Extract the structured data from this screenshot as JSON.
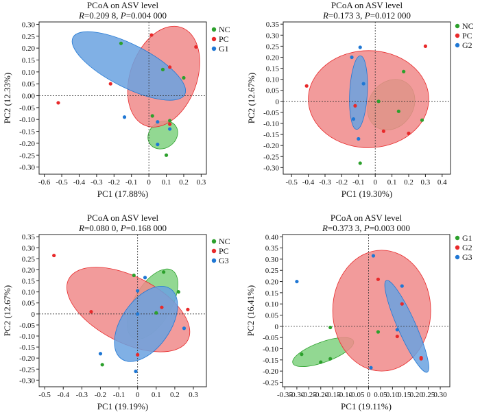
{
  "colors": {
    "NC": "#2ca02c",
    "PC": "#e8292a",
    "G1": "#1f77d4",
    "G2": "#1f77d4",
    "G3": "#1f77d4",
    "G1_green": "#2ca02c",
    "G2_red": "#e8292a",
    "G3_blue": "#1f77d4"
  },
  "chart_data": [
    {
      "type": "scatter",
      "title": "PCoA on ASV level",
      "stats": {
        "r_label": "R",
        "r_value": "=0.209 8, ",
        "p_label": "P",
        "p_value": "=0.004 000"
      },
      "xlabel": "PC1 (17.88%)",
      "ylabel": "PC2 (12.33%)",
      "xlim": [
        -0.63,
        0.33
      ],
      "ylim": [
        -0.33,
        0.31
      ],
      "xticks": [
        "-0.6",
        "-0.5",
        "-0.4",
        "-0.3",
        "-0.2",
        "-0.1",
        "0",
        "0.1",
        "0.2",
        "0.3"
      ],
      "xtick_values": [
        -0.6,
        -0.5,
        -0.4,
        -0.3,
        -0.2,
        -0.1,
        0,
        0.1,
        0.2,
        0.3
      ],
      "yticks": [
        "0.30",
        "0.25",
        "0.20",
        "0.15",
        "0.10",
        "0.05",
        "0.00",
        "-0.05",
        "-0.10",
        "-0.15",
        "-0.20",
        "-0.25",
        "-0.30"
      ],
      "ytick_values": [
        0.3,
        0.25,
        0.2,
        0.15,
        0.1,
        0.05,
        0.0,
        -0.05,
        -0.1,
        -0.15,
        -0.2,
        -0.25,
        -0.3
      ],
      "legend": [
        "NC",
        "PC",
        "G1"
      ],
      "legend_colors": [
        "#2ca02c",
        "#e8292a",
        "#1f77d4"
      ],
      "series": [
        {
          "name": "NC",
          "color": "#2ca02c",
          "points": [
            [
              -0.16,
              0.22
            ],
            [
              0.08,
              0.11
            ],
            [
              0.2,
              0.075
            ],
            [
              0.02,
              -0.085
            ],
            [
              0.12,
              -0.105
            ],
            [
              0.1,
              -0.25
            ]
          ],
          "ellipse": {
            "cx": 0.08,
            "cy": -0.165,
            "rx": 0.09,
            "ry": 0.055,
            "angle": -35,
            "fill": "#7fd17f"
          }
        },
        {
          "name": "PC",
          "color": "#e8292a",
          "points": [
            [
              0.015,
              0.255
            ],
            [
              0.27,
              0.205
            ],
            [
              0.12,
              0.12
            ],
            [
              -0.22,
              0.05
            ],
            [
              -0.52,
              -0.03
            ],
            [
              0.12,
              -0.12
            ]
          ],
          "ellipse": {
            "cx": 0.085,
            "cy": 0.08,
            "rx": 0.3,
            "ry": 0.14,
            "angle": -70,
            "fill": "#f08a8a"
          }
        },
        {
          "name": "G1",
          "color": "#1f77d4",
          "points": [
            [
              -0.14,
              -0.09
            ],
            [
              0.05,
              -0.11
            ],
            [
              0.12,
              -0.14
            ],
            [
              0.05,
              -0.205
            ]
          ],
          "ellipse": {
            "cx": -0.115,
            "cy": 0.125,
            "rx": 0.36,
            "ry": 0.09,
            "angle": 27,
            "fill": "#6aa2e0"
          }
        }
      ]
    },
    {
      "type": "scatter",
      "title": "PCoA on ASV level",
      "stats": {
        "r_label": "R",
        "r_value": "=0.173 3, ",
        "p_label": "P",
        "p_value": "=0.012 000"
      },
      "xlabel": "PC1 (19.30%)",
      "ylabel": "PC2 (12.67%)",
      "xlim": [
        -0.55,
        0.45
      ],
      "ylim": [
        -0.33,
        0.36
      ],
      "xticks": [
        "-0.5",
        "-0.4",
        "-0.3",
        "-0.2",
        "-0.1",
        "0",
        "0.1",
        "0.2",
        "0.3",
        "0.4"
      ],
      "xtick_values": [
        -0.5,
        -0.4,
        -0.3,
        -0.2,
        -0.1,
        0,
        0.1,
        0.2,
        0.3,
        0.4
      ],
      "yticks": [
        "0.35",
        "0.30",
        "0.25",
        "0.20",
        "0.15",
        "0.10",
        "0.05",
        "0",
        "-0.05",
        "-0.10",
        "-0.15",
        "-0.20",
        "-0.25",
        "-0.30"
      ],
      "ytick_values": [
        0.35,
        0.3,
        0.25,
        0.2,
        0.15,
        0.1,
        0.05,
        0,
        -0.05,
        -0.1,
        -0.15,
        -0.2,
        -0.25,
        -0.3
      ],
      "legend": [
        "NC",
        "PC",
        "G2"
      ],
      "legend_colors": [
        "#2ca02c",
        "#e8292a",
        "#1f77d4"
      ],
      "series": [
        {
          "name": "NC",
          "color": "#2ca02c",
          "points": [
            [
              0.17,
              0.135
            ],
            [
              0.02,
              0.0
            ],
            [
              0.14,
              -0.045
            ],
            [
              0.28,
              -0.085
            ],
            [
              -0.09,
              -0.28
            ]
          ],
          "ellipse": {
            "cx": 0.095,
            "cy": -0.015,
            "rx": 0.16,
            "ry": 0.1,
            "angle": -55,
            "fill": "#7fd17f"
          }
        },
        {
          "name": "PC",
          "color": "#e8292a",
          "points": [
            [
              -0.41,
              0.07
            ],
            [
              0.3,
              0.25
            ],
            [
              -0.12,
              -0.02
            ],
            [
              0.05,
              -0.135
            ],
            [
              0.2,
              -0.145
            ]
          ],
          "ellipse": {
            "cx": -0.04,
            "cy": 0.01,
            "rx": 0.36,
            "ry": 0.22,
            "angle": 0,
            "fill": "#f08a8a"
          }
        },
        {
          "name": "G2",
          "color": "#1f77d4",
          "points": [
            [
              -0.09,
              0.245
            ],
            [
              -0.14,
              0.2
            ],
            [
              -0.07,
              0.08
            ],
            [
              -0.13,
              -0.08
            ],
            [
              -0.1,
              -0.17
            ]
          ],
          "ellipse": {
            "cx": -0.1,
            "cy": 0.04,
            "rx": 0.22,
            "ry": 0.04,
            "angle": -87,
            "fill": "#6aa2e0"
          }
        }
      ]
    },
    {
      "type": "scatter",
      "title": "PCoA on ASV level",
      "stats": {
        "r_label": "R",
        "r_value": "=0.080 0, ",
        "p_label": "P",
        "p_value": "=0.168 000"
      },
      "xlabel": "PC1 (19.19%)",
      "ylabel": "PC2 (12.67%)",
      "xlim": [
        -0.53,
        0.37
      ],
      "ylim": [
        -0.33,
        0.36
      ],
      "xticks": [
        "-0.5",
        "-0.4",
        "-0.3",
        "-0.2",
        "-0.1",
        "0",
        "0.1",
        "0.2",
        "0.3"
      ],
      "xtick_values": [
        -0.5,
        -0.4,
        -0.3,
        -0.2,
        -0.1,
        0,
        0.1,
        0.2,
        0.3
      ],
      "yticks": [
        "0.35",
        "0.30",
        "0.25",
        "0.20",
        "0.15",
        "0.10",
        "0.05",
        "0",
        "-0.05",
        "-0.10",
        "-0.15",
        "-0.20",
        "-0.25",
        "-0.30"
      ],
      "ytick_values": [
        0.35,
        0.3,
        0.25,
        0.2,
        0.15,
        0.1,
        0.05,
        0,
        -0.05,
        -0.1,
        -0.15,
        -0.2,
        -0.25,
        -0.3
      ],
      "legend": [
        "NC",
        "PC",
        "G3"
      ],
      "legend_colors": [
        "#2ca02c",
        "#e8292a",
        "#1f77d4"
      ],
      "series": [
        {
          "name": "NC",
          "color": "#2ca02c",
          "points": [
            [
              -0.02,
              0.175
            ],
            [
              0.14,
              0.19
            ],
            [
              0.22,
              0.1
            ],
            [
              0.1,
              0.005
            ],
            [
              -0.19,
              -0.23
            ]
          ],
          "ellipse": {
            "cx": 0.08,
            "cy": 0.045,
            "rx": 0.21,
            "ry": 0.085,
            "angle": -60,
            "fill": "#7fd17f"
          }
        },
        {
          "name": "PC",
          "color": "#e8292a",
          "points": [
            [
              -0.45,
              0.265
            ],
            [
              -0.25,
              0.01
            ],
            [
              0.27,
              0.02
            ],
            [
              0.13,
              0.03
            ],
            [
              0.0,
              -0.185
            ]
          ],
          "ellipse": {
            "cx": -0.05,
            "cy": 0.02,
            "rx": 0.36,
            "ry": 0.15,
            "angle": 27,
            "fill": "#f08a8a"
          }
        },
        {
          "name": "G3",
          "color": "#1f77d4",
          "points": [
            [
              0.04,
              0.165
            ],
            [
              0.0,
              0.105
            ],
            [
              0.0,
              0.0
            ],
            [
              0.25,
              -0.065
            ],
            [
              -0.2,
              -0.18
            ],
            [
              -0.01,
              -0.26
            ]
          ],
          "ellipse": {
            "cx": 0.045,
            "cy": -0.045,
            "rx": 0.23,
            "ry": 0.11,
            "angle": -55,
            "fill": "#6aa2e0"
          }
        }
      ]
    },
    {
      "type": "scatter",
      "title": "PCoA on ASV level",
      "stats": {
        "r_label": "R",
        "r_value": "=0.373 3, ",
        "p_label": "P",
        "p_value": "=0.003 000"
      },
      "xlabel": "PC1 (19.11%)",
      "ylabel": "PC2 (16.41%)",
      "xlim": [
        -0.36,
        0.34
      ],
      "ylim": [
        -0.27,
        0.41
      ],
      "xticks": [
        "-0.35",
        "-0.30",
        "-0.25",
        "-0.20",
        "-0.15",
        "-0.10",
        "-0.05",
        "0",
        "0.05",
        "0.10",
        "0.15",
        "0.20",
        "0.25",
        "0.30"
      ],
      "xtick_values": [
        -0.35,
        -0.3,
        -0.25,
        -0.2,
        -0.15,
        -0.1,
        -0.05,
        0,
        0.05,
        0.1,
        0.15,
        0.2,
        0.25,
        0.3
      ],
      "yticks": [
        "0.40",
        "0.35",
        "0.30",
        "0.25",
        "0.20",
        "0.15",
        "0.10",
        "0.05",
        "0",
        "-0.05",
        "-0.10",
        "-0.15",
        "-0.20",
        "-0.25"
      ],
      "ytick_values": [
        0.4,
        0.35,
        0.3,
        0.25,
        0.2,
        0.15,
        0.1,
        0.05,
        0,
        -0.05,
        -0.1,
        -0.15,
        -0.2,
        -0.25
      ],
      "legend": [
        "G1",
        "G2",
        "G3"
      ],
      "legend_colors": [
        "#2ca02c",
        "#e8292a",
        "#1f77d4"
      ],
      "series": [
        {
          "name": "G1",
          "color": "#2ca02c",
          "points": [
            [
              -0.28,
              -0.125
            ],
            [
              -0.2,
              -0.16
            ],
            [
              -0.16,
              -0.145
            ],
            [
              -0.16,
              -0.005
            ],
            [
              0.04,
              -0.025
            ]
          ],
          "ellipse": {
            "cx": -0.19,
            "cy": -0.115,
            "rx": 0.135,
            "ry": 0.045,
            "angle": -20,
            "fill": "#7fd17f"
          }
        },
        {
          "name": "G2",
          "color": "#e8292a",
          "points": [
            [
              0.04,
              0.21
            ],
            [
              0.14,
              0.1
            ],
            [
              0.12,
              -0.045
            ],
            [
              0.22,
              -0.14
            ],
            [
              0.22,
              -0.145
            ]
          ],
          "ellipse": {
            "cx": 0.055,
            "cy": 0.07,
            "rx": 0.205,
            "ry": 0.27,
            "angle": 0,
            "fill": "#f08a8a"
          }
        },
        {
          "name": "G3",
          "color": "#1f77d4",
          "points": [
            [
              0.02,
              0.315
            ],
            [
              -0.3,
              0.2
            ],
            [
              0.14,
              0.18
            ],
            [
              0.12,
              -0.015
            ],
            [
              0.01,
              -0.185
            ]
          ],
          "ellipse": {
            "cx": 0.16,
            "cy": 0.0,
            "rx": 0.21,
            "ry": 0.04,
            "angle": 66,
            "fill": "#6aa2e0"
          }
        }
      ]
    }
  ]
}
